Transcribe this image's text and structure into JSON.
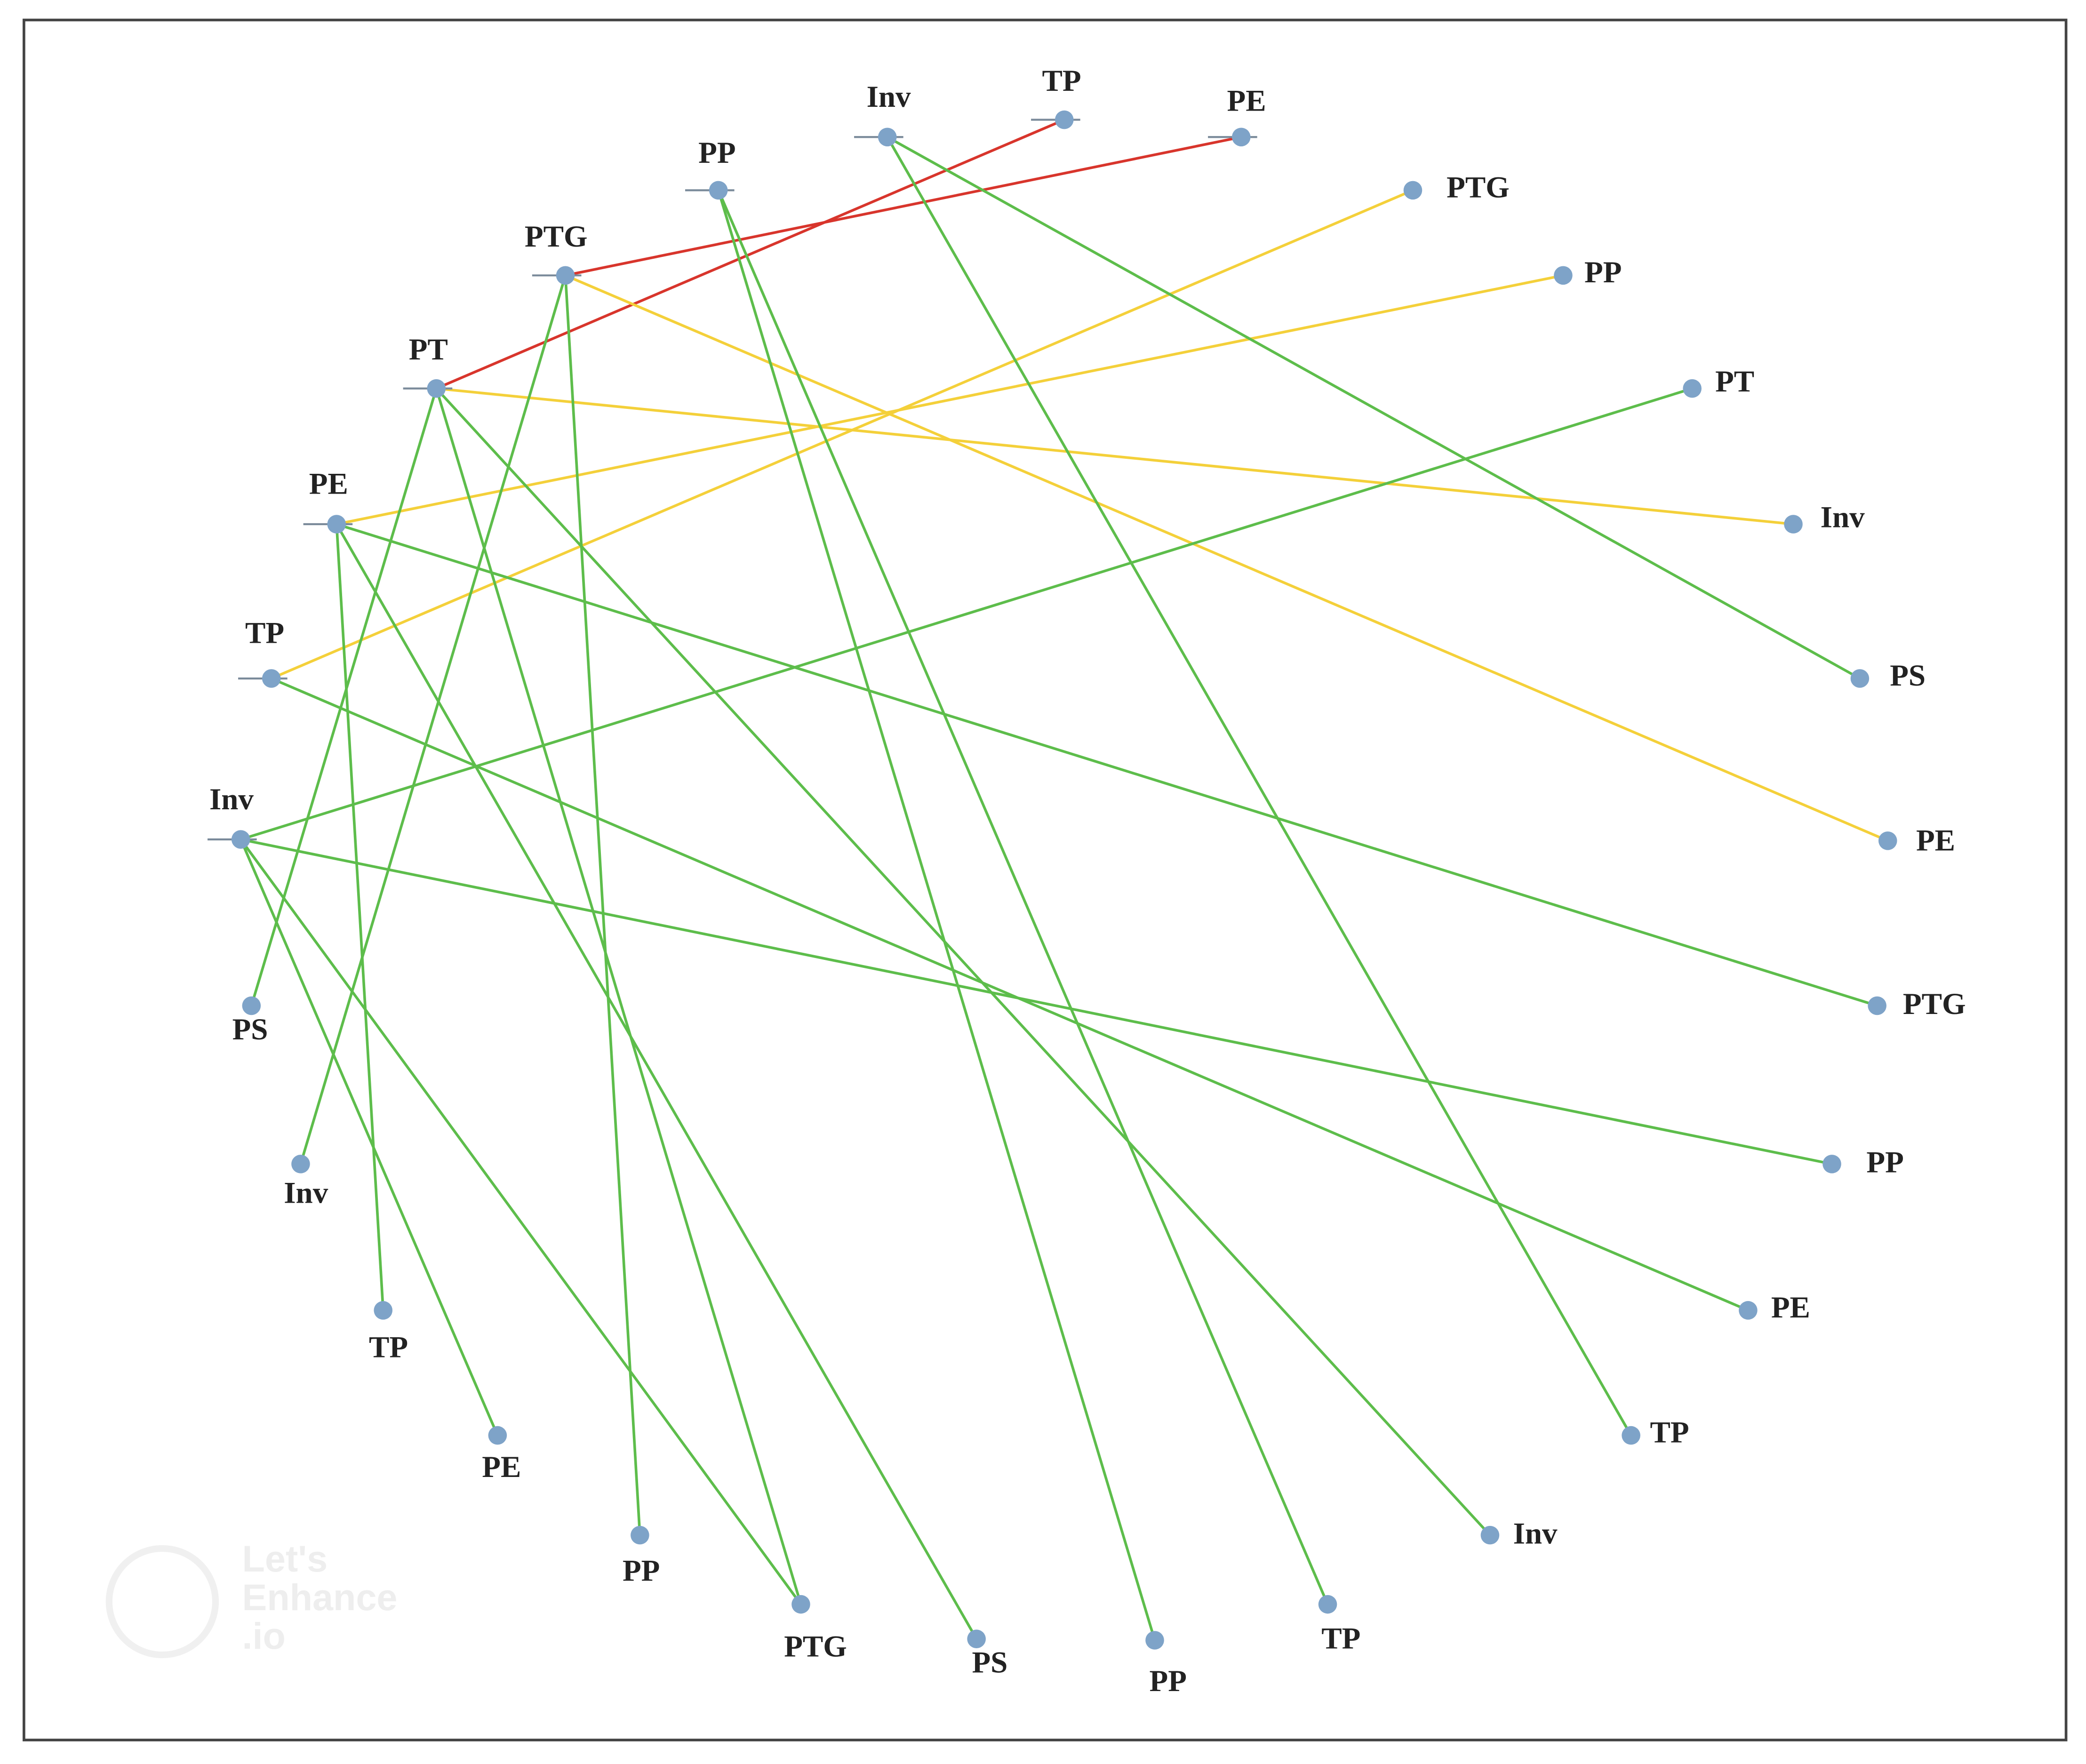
{
  "nodes": [
    "Inv",
    "TP",
    "PE",
    "PP",
    "PTG",
    "PT",
    "PE",
    "TP",
    "Inv",
    "PTG",
    "PP",
    "PT",
    "Inv",
    "PS",
    "PE",
    "PTG",
    "PP",
    "PE",
    "TP",
    "Inv",
    "TP",
    "PP",
    "PS",
    "PTG",
    "PP",
    "PE",
    "TP",
    "Inv",
    "PS"
  ],
  "watermark": [
    "Let's",
    "Enhance",
    ".io"
  ]
}
